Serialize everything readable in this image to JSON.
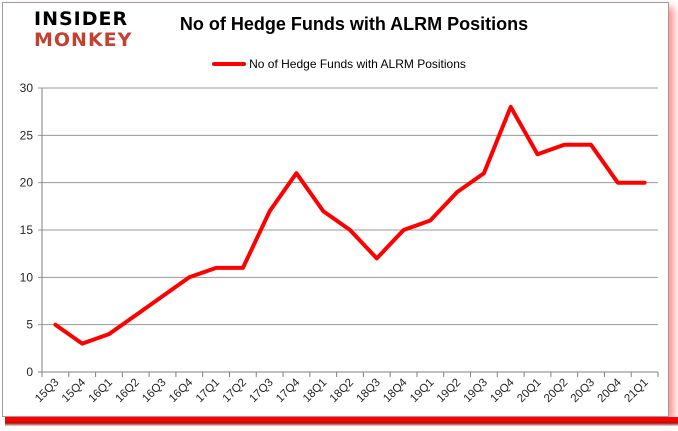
{
  "page": {
    "logo_line1": "INSIDER",
    "logo_line2": "MONKEY",
    "title": "No of Hedge Funds with ALRM Positions",
    "legend_label": "No of Hedge Funds with ALRM Positions"
  },
  "colors": {
    "series_red": "#ff0000",
    "logo_red": "#c4402f",
    "gridline": "#999999",
    "axis": "#808080",
    "label_text": "#262626",
    "frame_border": "#9c9c9c"
  },
  "chart_data": {
    "type": "line",
    "title": "No of Hedge Funds with ALRM Positions",
    "categories": [
      "15Q3",
      "15Q4",
      "16Q1",
      "16Q2",
      "16Q3",
      "16Q4",
      "17Q1",
      "17Q2",
      "17Q3",
      "17Q4",
      "18Q1",
      "18Q2",
      "18Q3",
      "18Q4",
      "19Q1",
      "19Q2",
      "19Q3",
      "19Q4",
      "20Q1",
      "20Q2",
      "20Q3",
      "20Q4",
      "21Q1"
    ],
    "series": [
      {
        "name": "No of Hedge Funds with ALRM Positions",
        "color": "#ff0000",
        "values": [
          5,
          3,
          4,
          6,
          8,
          10,
          11,
          11,
          17,
          21,
          17,
          15,
          12,
          15,
          16,
          19,
          21,
          28,
          23,
          24,
          24,
          20,
          20
        ]
      }
    ],
    "xlabel": "",
    "ylabel": "",
    "ylim": [
      0,
      30
    ],
    "yticks": [
      0,
      5,
      10,
      15,
      20,
      25,
      30
    ],
    "grid": "horizontal-only",
    "legend_position": "top-center",
    "x_label_rotation_deg": 45
  }
}
